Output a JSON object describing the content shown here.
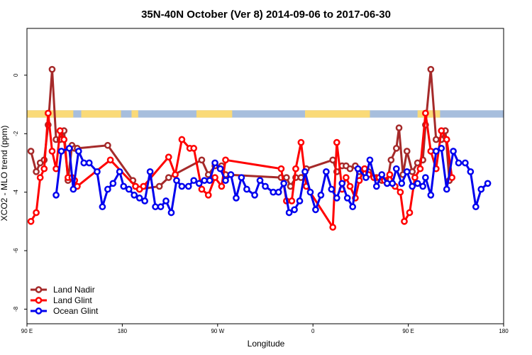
{
  "chart_data": {
    "type": "line",
    "title": "35N-40N October (Ver 8)   2014-09-06 to 2017-06-30",
    "xlabel": "Longitude",
    "ylabel": "XCO2 - MLO trend (ppm)",
    "xlim": [
      -90,
      270
    ],
    "ylim": [
      -8.5,
      1.6
    ],
    "x_ticks": [
      {
        "value": -90,
        "label": "90 E"
      },
      {
        "value": -18,
        "label": "180"
      },
      {
        "value": 54,
        "label": "90 W"
      },
      {
        "value": 126,
        "label": "0"
      },
      {
        "value": 198,
        "label": "90 E"
      },
      {
        "value": 270,
        "label": "180"
      }
    ],
    "y_ticks": [
      0,
      -2,
      -4,
      -6,
      -8
    ],
    "land_ocean_band": {
      "y_range": [
        -1.45,
        -1.2
      ],
      "land_color": "#FADA78",
      "ocean_color": "#A7BEDD",
      "land_segments": [
        [
          -90,
          -55
        ],
        [
          -49,
          -19
        ],
        [
          -11,
          -6
        ],
        [
          38,
          65
        ],
        [
          120,
          169
        ],
        [
          205,
          222
        ]
      ]
    },
    "legend": {
      "position": "bottom-left"
    },
    "series": [
      {
        "name": "Land Nadir",
        "color": "#A52A2A",
        "x": [
          -87,
          -83,
          -80,
          -77,
          -74,
          -71,
          -68,
          -65,
          -62,
          -59,
          -56,
          -54,
          -52,
          -29,
          -10,
          -8,
          -5,
          10,
          17,
          42,
          47,
          52,
          57,
          60,
          102,
          106,
          109,
          113,
          117,
          121,
          141,
          144,
          148,
          151,
          154,
          158,
          161,
          165,
          168,
          174,
          178,
          182,
          185,
          189,
          191,
          194,
          197,
          201,
          205,
          209,
          211,
          215,
          219,
          223,
          226,
          229
        ],
        "y": [
          -2.6,
          -3.3,
          -3.0,
          -2.9,
          -1.7,
          0.2,
          -2.2,
          -2.2,
          -1.9,
          -3.6,
          -2.4,
          -2.5,
          -2.5,
          -2.4,
          -3.6,
          -3.8,
          -3.9,
          -3.8,
          -3.5,
          -2.9,
          -3.4,
          -3.1,
          -3.1,
          -3.4,
          -3.5,
          -3.5,
          -3.8,
          -3.5,
          -3.5,
          -3.2,
          -2.9,
          -3.3,
          -3.1,
          -3.1,
          -3.2,
          -3.1,
          -3.3,
          -3.2,
          -3.3,
          -3.5,
          -3.6,
          -3.7,
          -2.9,
          -2.5,
          -1.8,
          -3.4,
          -2.6,
          -3.3,
          -3.0,
          -2.9,
          -1.7,
          0.2,
          -2.2,
          -2.2,
          -1.9,
          -3.6
        ]
      },
      {
        "name": "Land Glint",
        "color": "#FF0000",
        "x": [
          -87,
          -83,
          -80,
          -77,
          -74,
          -71,
          -68,
          -65,
          -62,
          -59,
          -56,
          -54,
          -52,
          -27,
          -8,
          -5,
          -2,
          17,
          22,
          27,
          33,
          36,
          42,
          47,
          52,
          57,
          60,
          102,
          106,
          110,
          113,
          117,
          121,
          141,
          144,
          148,
          151,
          154,
          158,
          161,
          165,
          168,
          172,
          176,
          180,
          184,
          188,
          192,
          195,
          199,
          203,
          207,
          211,
          215,
          219,
          223,
          227,
          231
        ],
        "y": [
          -5.0,
          -4.7,
          -3.5,
          -3.2,
          -1.3,
          -2.6,
          -3.2,
          -1.9,
          -2.2,
          -3.5,
          -3.5,
          -3.6,
          -3.8,
          -2.9,
          -3.8,
          -3.9,
          -3.8,
          -2.8,
          -3.4,
          -2.2,
          -2.5,
          -2.5,
          -3.9,
          -4.1,
          -3.5,
          -3.8,
          -2.9,
          -3.2,
          -4.3,
          -4.3,
          -3.2,
          -2.3,
          -3.8,
          -5.2,
          -2.3,
          -3.9,
          -3.5,
          -3.8,
          -4.2,
          -3.6,
          -3.2,
          -3.4,
          -3.5,
          -3.5,
          -3.6,
          -3.4,
          -3.8,
          -4.0,
          -5.0,
          -4.7,
          -3.5,
          -3.2,
          -1.3,
          -2.6,
          -3.2,
          -1.9,
          -2.2,
          -3.5
        ]
      },
      {
        "name": "Ocean Glint",
        "color": "#0000EE",
        "x": [
          -68,
          -64,
          -58,
          -55,
          -51,
          -47,
          -43,
          -37,
          -33,
          -29,
          -25,
          -20,
          -17,
          -13,
          -9,
          -5,
          -1,
          3,
          7,
          11,
          15,
          19,
          23,
          27,
          32,
          36,
          40,
          44,
          48,
          52,
          56,
          60,
          64,
          68,
          72,
          76,
          82,
          86,
          90,
          96,
          100,
          104,
          108,
          112,
          116,
          120,
          124,
          128,
          132,
          136,
          140,
          144,
          148,
          152,
          156,
          160,
          166,
          169,
          174,
          178,
          182,
          186,
          189,
          193,
          197,
          201,
          205,
          209,
          211,
          215,
          219,
          223,
          227,
          232,
          236,
          241,
          245,
          249,
          253,
          258
        ],
        "y": [
          -4.1,
          -2.6,
          -2.5,
          -3.9,
          -2.6,
          -3.0,
          -3.0,
          -3.3,
          -4.5,
          -3.9,
          -3.7,
          -3.3,
          -3.8,
          -3.9,
          -4.1,
          -4.2,
          -4.3,
          -3.3,
          -4.5,
          -4.5,
          -4.3,
          -4.7,
          -3.6,
          -3.8,
          -3.8,
          -3.6,
          -3.7,
          -3.6,
          -3.6,
          -3.0,
          -3.2,
          -3.6,
          -3.4,
          -4.2,
          -3.5,
          -3.9,
          -4.1,
          -3.6,
          -3.8,
          -4.0,
          -4.0,
          -3.7,
          -4.7,
          -4.6,
          -4.3,
          -3.3,
          -4.0,
          -4.6,
          -4.1,
          -3.3,
          -3.9,
          -4.2,
          -3.7,
          -4.2,
          -4.5,
          -3.2,
          -3.5,
          -2.9,
          -3.8,
          -3.4,
          -3.7,
          -3.7,
          -3.2,
          -3.7,
          -3.3,
          -3.8,
          -3.7,
          -3.8,
          -3.5,
          -4.1,
          -2.6,
          -2.5,
          -3.9,
          -2.6,
          -3.0,
          -3.0,
          -3.3,
          -4.5,
          -3.9,
          -3.7
        ]
      }
    ]
  }
}
